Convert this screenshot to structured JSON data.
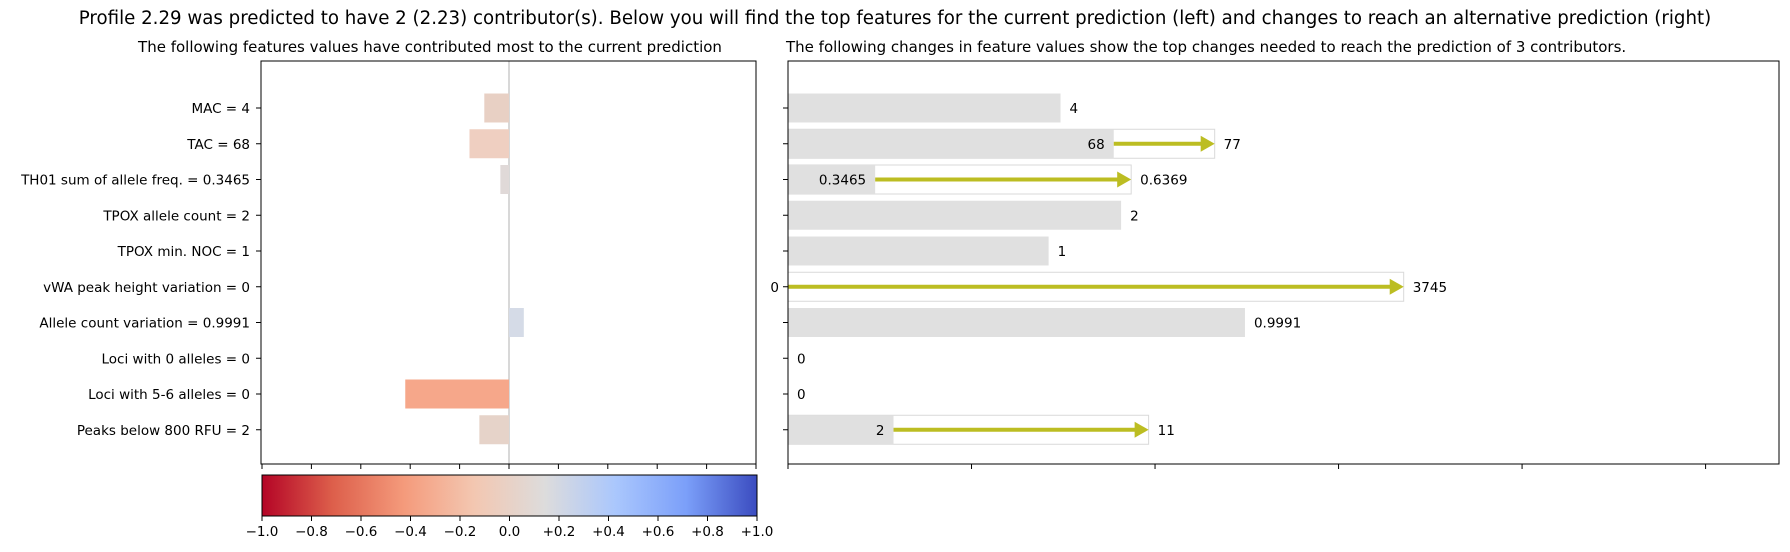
{
  "figure": {
    "suptitle": "Profile 2.29 was predicted to have 2 (2.23) contributor(s). Below you will find the top features for the current prediction (left) and changes to reach an alternative prediction (right)"
  },
  "chart_data": [
    {
      "type": "bar",
      "orientation": "horizontal",
      "title": "The following features values have contributed most to the current prediction",
      "categories": [
        "MAC = 4",
        "TAC = 68",
        "TH01 sum of allele freq. = 0.3465",
        "TPOX allele count = 2",
        "TPOX min. NOC = 1",
        "vWA peak height variation = 0",
        "Allele count variation = 0.9991",
        "Loci with 0 alleles = 0",
        "Loci with 5-6 alleles = 0",
        "Peaks below 800 RFU = 2"
      ],
      "values": [
        -0.1,
        -0.16,
        -0.035,
        0,
        0,
        0,
        0.06,
        0,
        -0.42,
        -0.12
      ],
      "xlim": [
        -1.0,
        1.0
      ],
      "grid": false,
      "bar_colors": [
        "#e8d0c4",
        "#efcfc1",
        "#e0d9d8",
        "#dddddd",
        "#dddddd",
        "#dddddd",
        "#d5dbe7",
        "#dddddd",
        "#f6a78a",
        "#e6d3c9"
      ],
      "colorbar": {
        "colormap": "coolwarm",
        "range": [
          -1.0,
          1.0
        ],
        "ticks": [
          "−1.0",
          "−0.8",
          "−0.6",
          "−0.4",
          "−0.2",
          "0.0",
          "+0.2",
          "+0.4",
          "+0.6",
          "+0.8",
          "+1.0"
        ],
        "colors": [
          "#b40426",
          "#dd5f4b",
          "#f49a7b",
          "#f3c7b1",
          "#dddcdc",
          "#aac7fd",
          "#7b9ff9",
          "#3b4cc0"
        ]
      }
    },
    {
      "type": "bar",
      "orientation": "horizontal",
      "title": "The following changes in feature values show the top changes needed to reach the prediction of 3 contributors.",
      "xlim": [
        0,
        1.08
      ],
      "bar_color": "#e0e0e0",
      "arrow_color": "#bcbd22",
      "rows": [
        {
          "current": 4,
          "current_label": "4",
          "norm_current": 0.297
        },
        {
          "current": 68,
          "current_label": "68",
          "target": 77,
          "target_label": "77",
          "norm_current": 0.355,
          "norm_target": 0.465
        },
        {
          "current": 0.3465,
          "current_label": "0.3465",
          "target": 0.6369,
          "target_label": "0.6369",
          "norm_current": 0.095,
          "norm_target": 0.374
        },
        {
          "current": 2,
          "current_label": "2",
          "norm_current": 0.363
        },
        {
          "current": 1,
          "current_label": "1",
          "norm_current": 0.284
        },
        {
          "current": 0,
          "current_label": "0",
          "target": 3745,
          "target_label": "3745",
          "norm_current": 0.0,
          "norm_target": 0.671
        },
        {
          "current": 0.9991,
          "current_label": "0.9991",
          "norm_current": 0.498
        },
        {
          "current": 0,
          "current_label": "0",
          "norm_current": 0.0
        },
        {
          "current": 0,
          "current_label": "0",
          "norm_current": 0.0
        },
        {
          "current": 2,
          "current_label": "2",
          "target": 11,
          "target_label": "11",
          "norm_current": 0.115,
          "norm_target": 0.393
        }
      ]
    }
  ]
}
